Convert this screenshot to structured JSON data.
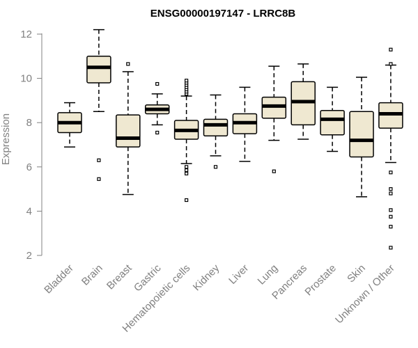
{
  "chart_data": {
    "type": "boxplot",
    "title": "ENSG00000197147 - LRRC8B",
    "ylabel": "Expression",
    "xlabel": "",
    "ylim": [
      2,
      12.4
    ],
    "yticks": [
      2,
      4,
      6,
      8,
      10,
      12
    ],
    "grid": false,
    "box_fill": "#efe8d1",
    "categories": [
      "Bladder",
      "Brain",
      "Breast",
      "Gastric",
      "Hematopoietic cells",
      "Kidney",
      "Liver",
      "Lung",
      "Pancreas",
      "Prostate",
      "Skin",
      "Unknown / Other"
    ],
    "boxes": [
      {
        "label": "Bladder",
        "whisker_low": 6.9,
        "q1": 7.55,
        "median": 8.0,
        "q3": 8.45,
        "whisker_high": 8.9,
        "outliers": []
      },
      {
        "label": "Brain",
        "whisker_low": 8.5,
        "q1": 9.8,
        "median": 10.5,
        "q3": 11.0,
        "whisker_high": 12.2,
        "outliers": [
          6.3,
          5.45
        ]
      },
      {
        "label": "Breast",
        "whisker_low": 4.75,
        "q1": 6.9,
        "median": 7.3,
        "q3": 8.35,
        "whisker_high": 10.3,
        "outliers": [
          10.65
        ]
      },
      {
        "label": "Gastric",
        "whisker_low": 7.9,
        "q1": 8.4,
        "median": 8.6,
        "q3": 8.8,
        "whisker_high": 9.3,
        "outliers": [
          9.75,
          7.55
        ]
      },
      {
        "label": "Hematopoietic cells",
        "whisker_low": 6.15,
        "q1": 7.25,
        "median": 7.65,
        "q3": 8.1,
        "whisker_high": 9.2,
        "outliers": [
          9.3,
          9.4,
          9.5,
          9.6,
          9.7,
          9.8,
          9.9,
          6.0,
          5.85,
          5.7,
          4.5
        ]
      },
      {
        "label": "Kidney",
        "whisker_low": 6.5,
        "q1": 7.4,
        "median": 7.9,
        "q3": 8.15,
        "whisker_high": 9.25,
        "outliers": [
          6.0
        ]
      },
      {
        "label": "Liver",
        "whisker_low": 6.25,
        "q1": 7.5,
        "median": 8.0,
        "q3": 8.4,
        "whisker_high": 9.6,
        "outliers": []
      },
      {
        "label": "Lung",
        "whisker_low": 7.2,
        "q1": 8.2,
        "median": 8.75,
        "q3": 9.15,
        "whisker_high": 10.55,
        "outliers": [
          5.8
        ]
      },
      {
        "label": "Pancreas",
        "whisker_low": 7.25,
        "q1": 7.9,
        "median": 8.95,
        "q3": 9.85,
        "whisker_high": 10.65,
        "outliers": []
      },
      {
        "label": "Prostate",
        "whisker_low": 6.7,
        "q1": 7.45,
        "median": 8.15,
        "q3": 8.55,
        "whisker_high": 9.6,
        "outliers": []
      },
      {
        "label": "Skin",
        "whisker_low": 4.65,
        "q1": 6.45,
        "median": 7.2,
        "q3": 8.5,
        "whisker_high": 10.05,
        "outliers": []
      },
      {
        "label": "Unknown / Other",
        "whisker_low": 6.2,
        "q1": 7.75,
        "median": 8.4,
        "q3": 8.9,
        "whisker_high": 10.6,
        "outliers": [
          11.3,
          10.65,
          5.75,
          5.0,
          4.8,
          4.05,
          3.75,
          3.3,
          2.35
        ]
      }
    ]
  }
}
